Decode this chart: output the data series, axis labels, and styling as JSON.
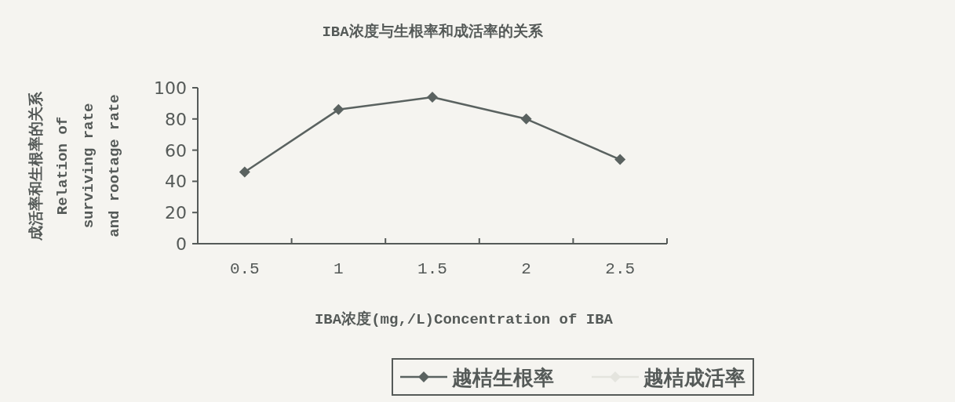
{
  "chart_data": {
    "type": "line",
    "title": "IBA浓度与生根率和成活率的关系",
    "xlabel": "IBA浓度(mg,/L)Concentration of IBA",
    "ylabel": "成活率和生根率的关系Relation of surviving rate and rootage rate",
    "categories": [
      "0.5",
      "1",
      "1.5",
      "2",
      "2.5"
    ],
    "series": [
      {
        "name": "越桔生根率",
        "color": "#5a6260",
        "values": [
          46,
          86,
          94,
          80,
          54
        ]
      },
      {
        "name": "越桔成活率",
        "color": "#e4e4de",
        "values": [
          null,
          null,
          null,
          null,
          null
        ]
      }
    ],
    "ylim": [
      0,
      100
    ],
    "yticks": [
      0,
      20,
      40,
      60,
      80,
      100
    ],
    "marker": "diamond",
    "line_style": "solid",
    "legend": "bottom",
    "grid": false
  }
}
